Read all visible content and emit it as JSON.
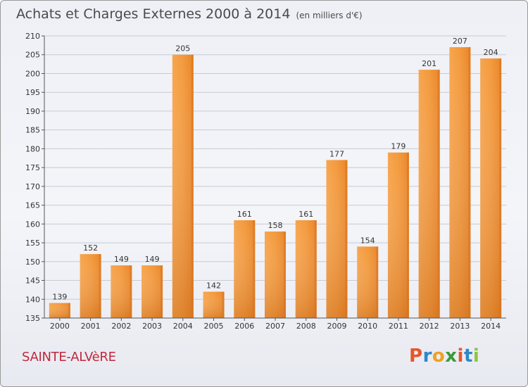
{
  "header": {
    "title": "Achats et Charges Externes 2000 à 2014",
    "subtitle": "(en milliers d'€)"
  },
  "footer": {
    "place": "SAINTE-ALVèRE",
    "logo_text": "Proxiti",
    "logo_colors": [
      "#e8552a",
      "#2e87c8",
      "#f0a021",
      "#3a9a3a",
      "#e8552a",
      "#2e87c8",
      "#8dc63f"
    ]
  },
  "chart_data": {
    "type": "bar",
    "title": "Achats et Charges Externes 2000 à 2014",
    "subtitle": "(en milliers d'€)",
    "categories": [
      "2000",
      "2001",
      "2002",
      "2003",
      "2004",
      "2005",
      "2006",
      "2007",
      "2008",
      "2009",
      "2010",
      "2011",
      "2012",
      "2013",
      "2014"
    ],
    "values": [
      139,
      152,
      149,
      149,
      205,
      142,
      161,
      158,
      161,
      177,
      154,
      179,
      201,
      207,
      204
    ],
    "ylim": [
      135,
      210
    ],
    "yticks": [
      135,
      140,
      145,
      150,
      155,
      160,
      165,
      170,
      175,
      180,
      185,
      190,
      195,
      200,
      205,
      210
    ],
    "grid": true,
    "bar_color": "#f0912f",
    "bar_color_light": "#f7b066",
    "bar_color_dark": "#cf6b17"
  }
}
